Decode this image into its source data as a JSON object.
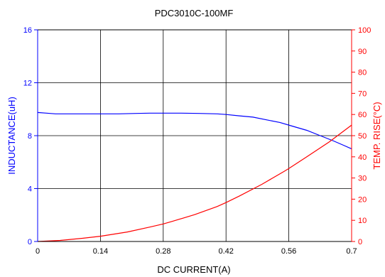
{
  "chart_data": {
    "type": "line",
    "title": "PDC3010C-100MF",
    "xlabel": "DC CURRENT(A)",
    "ylabel_left": "INDUCTANCE(uH)",
    "ylabel_right": "TEMP. RISE(°C)",
    "xlim": [
      0,
      0.7
    ],
    "ylim_left": [
      0,
      16
    ],
    "ylim_right": [
      0,
      100
    ],
    "x_ticks": [
      "0",
      "0.14",
      "0.28",
      "0.42",
      "0.56",
      "0.7"
    ],
    "y_left_ticks": [
      "0",
      "4",
      "8",
      "12",
      "16"
    ],
    "y_right_ticks": [
      "0",
      "10",
      "20",
      "30",
      "40",
      "50",
      "60",
      "70",
      "80",
      "90",
      "100"
    ],
    "grid": true,
    "colors": {
      "inductance": "#0000ff",
      "temp": "#ff0000",
      "left_axis": "#0000ff",
      "right_axis": "#ff0000",
      "grid": "#000000"
    },
    "series": [
      {
        "axis": "left",
        "x": [
          0,
          0.02,
          0.04,
          0.07,
          0.1,
          0.14,
          0.18,
          0.22,
          0.25,
          0.28,
          0.32,
          0.36,
          0.4,
          0.42,
          0.45,
          0.48,
          0.51,
          0.54,
          0.57,
          0.6,
          0.63,
          0.66,
          0.68,
          0.7
        ],
        "values": [
          9.75,
          9.7,
          9.65,
          9.65,
          9.65,
          9.65,
          9.65,
          9.68,
          9.7,
          9.7,
          9.7,
          9.68,
          9.65,
          9.6,
          9.5,
          9.4,
          9.2,
          9.0,
          8.7,
          8.4,
          8.0,
          7.6,
          7.3,
          7.0
        ]
      },
      {
        "axis": "right",
        "x": [
          0,
          0.05,
          0.1,
          0.14,
          0.2,
          0.25,
          0.28,
          0.3,
          0.35,
          0.4,
          0.42,
          0.45,
          0.5,
          0.55,
          0.56,
          0.6,
          0.65,
          0.7
        ],
        "values": [
          0,
          0.5,
          1.5,
          2.5,
          4.5,
          6.8,
          8.3,
          9.5,
          12.7,
          16.5,
          18.4,
          21.5,
          27,
          33.2,
          34.5,
          40,
          47,
          55
        ]
      }
    ]
  }
}
